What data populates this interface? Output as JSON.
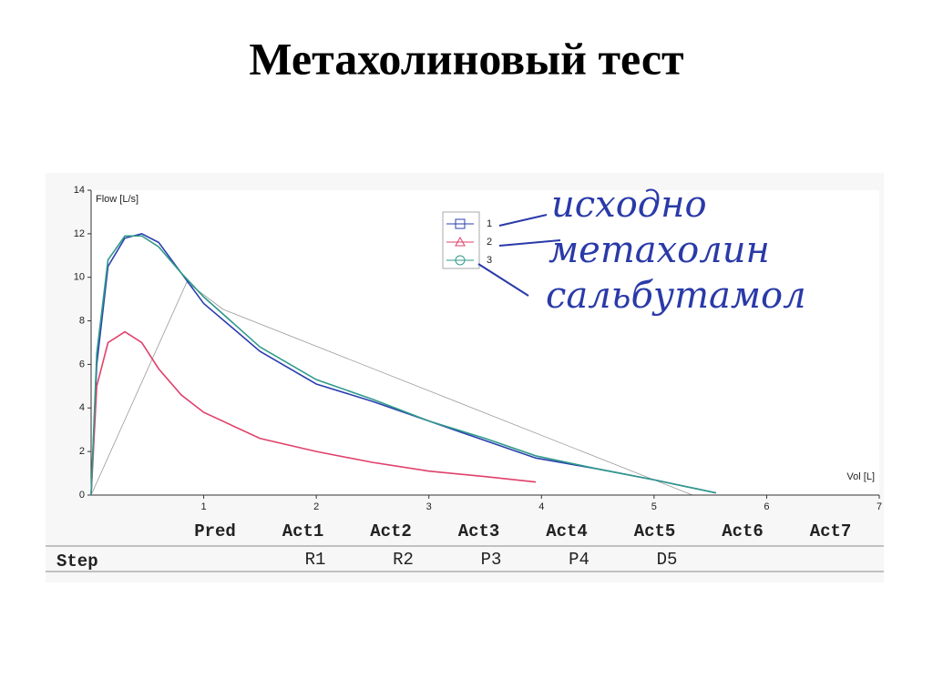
{
  "title": "Метахолиновый тест",
  "chart_data": {
    "type": "line",
    "ylabel": "Flow [L/s]",
    "xlabel": "Vol [L]",
    "xlim": [
      0,
      7
    ],
    "xticks": [
      1,
      2,
      3,
      4,
      5,
      6,
      7
    ],
    "ylim": [
      0,
      14
    ],
    "yticks": [
      0,
      2,
      4,
      6,
      8,
      10,
      12,
      14
    ],
    "x": [
      0,
      0.05,
      0.15,
      0.3,
      0.45,
      0.6,
      0.8,
      1,
      1.5,
      2,
      2.5,
      3,
      3.5,
      3.95,
      4.5,
      5,
      5.55
    ],
    "series": [
      {
        "name": "1",
        "color": "#2b3fb0",
        "marker": "square",
        "values": [
          0,
          6,
          10.5,
          11.8,
          12,
          11.6,
          10.2,
          8.8,
          6.6,
          5.1,
          4.3,
          3.4,
          2.5,
          1.7,
          1.2,
          0.7,
          0.1
        ]
      },
      {
        "name": "2",
        "color": "#e0406a",
        "marker": "triangle",
        "values": [
          0,
          5,
          7,
          7.5,
          7,
          5.8,
          4.6,
          3.8,
          2.6,
          2,
          1.5,
          1.1,
          0.85,
          0.6,
          null,
          null,
          null
        ]
      },
      {
        "name": "3",
        "color": "#2f9a8a",
        "marker": "circle",
        "values": [
          0,
          6.5,
          10.8,
          11.9,
          11.9,
          11.4,
          10.2,
          9.1,
          6.8,
          5.3,
          4.4,
          3.4,
          2.6,
          1.8,
          1.2,
          0.7,
          0.1
        ]
      }
    ],
    "annotations": [
      "исходно",
      "метахолин",
      "сальбутамол"
    ]
  },
  "table": {
    "header": [
      "Pred",
      "Act1",
      "Act2",
      "Act3",
      "Act4",
      "Act5",
      "Act6",
      "Act7"
    ],
    "row_label": "Step",
    "row": [
      "R1",
      "R2",
      "P3",
      "P4",
      "D5"
    ]
  }
}
